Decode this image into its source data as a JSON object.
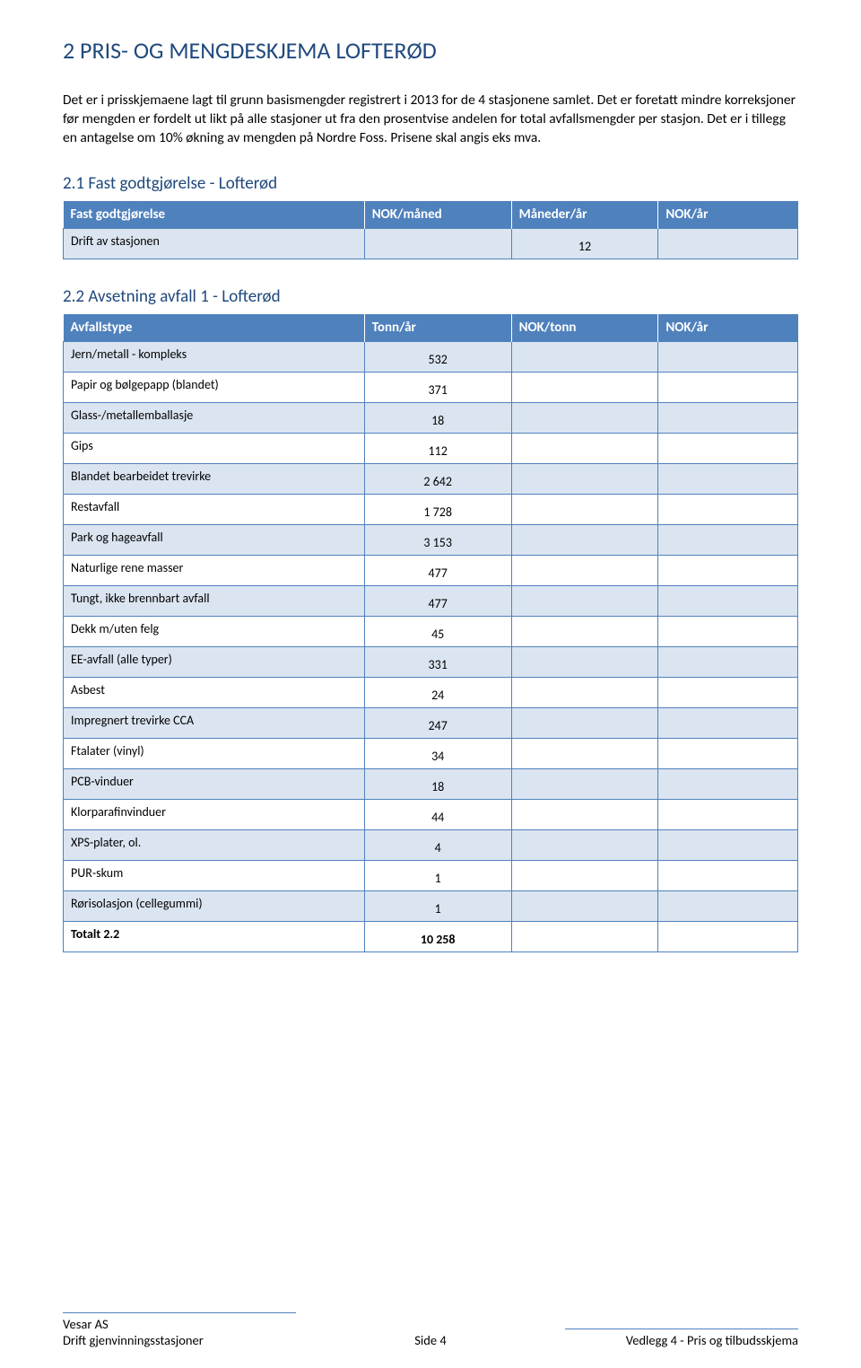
{
  "heading": "2   PRIS- OG MENGDESKJEMA LOFTERØD",
  "paragraph": "Det er i prisskjemaene lagt til grunn basismengder registrert i 2013 for de 4 stasjonene samlet. Det er foretatt mindre korreksjoner før mengden er fordelt ut likt på alle stasjoner ut fra den prosentvise andelen for total avfallsmengder per stasjon. Det er i tillegg en antagelse om 10% økning av mengden på Nordre Foss. Prisene skal angis eks mva.",
  "section21": {
    "title": "2.1   Fast godtgjørelse - Lofterød",
    "headers": [
      "Fast godtgjørelse",
      "NOK/måned",
      "Måneder/år",
      "NOK/år"
    ],
    "row_label": "Drift av stasjonen",
    "row_value": "12"
  },
  "section22": {
    "title": "2.2   Avsetning avfall 1 - Lofterød",
    "headers": [
      "Avfallstype",
      "Tonn/år",
      "NOK/tonn",
      "NOK/år"
    ],
    "rows": [
      {
        "label": "Jern/metall - kompleks",
        "val": "532"
      },
      {
        "label": "Papir og bølgepapp (blandet)",
        "val": "371"
      },
      {
        "label": "Glass-/metallemballasje",
        "val": "18"
      },
      {
        "label": "Gips",
        "val": "112"
      },
      {
        "label": "Blandet bearbeidet trevirke",
        "val": "2 642"
      },
      {
        "label": "Restavfall",
        "val": "1 728"
      },
      {
        "label": "Park og hageavfall",
        "val": "3 153"
      },
      {
        "label": "Naturlige rene masser",
        "val": "477"
      },
      {
        "label": "Tungt, ikke brennbart avfall",
        "val": "477"
      },
      {
        "label": "Dekk m/uten felg",
        "val": "45"
      },
      {
        "label": "EE-avfall (alle typer)",
        "val": "331"
      },
      {
        "label": "Asbest",
        "val": "24"
      },
      {
        "label": "Impregnert trevirke CCA",
        "val": "247"
      },
      {
        "label": "Ftalater (vinyl)",
        "val": "34"
      },
      {
        "label": "PCB-vinduer",
        "val": "18"
      },
      {
        "label": "Klorparafinvinduer",
        "val": "44"
      },
      {
        "label": "XPS-plater, ol.",
        "val": "4"
      },
      {
        "label": "PUR-skum",
        "val": "1"
      },
      {
        "label": "Rørisolasjon (cellegummi)",
        "val": "1"
      }
    ],
    "total_label": "Totalt 2.2",
    "total_value": "10 258"
  },
  "footer": {
    "left1": "Vesar AS",
    "left2": "Drift gjenvinningsstasjoner",
    "center": "Side 4",
    "right": "Vedlegg 4 - Pris og tilbudsskjema"
  },
  "colors": {
    "heading": "#1f497d",
    "table_header_bg": "#4f81bd",
    "band_bg": "#dbe5f1",
    "border": "#4f81bd"
  }
}
